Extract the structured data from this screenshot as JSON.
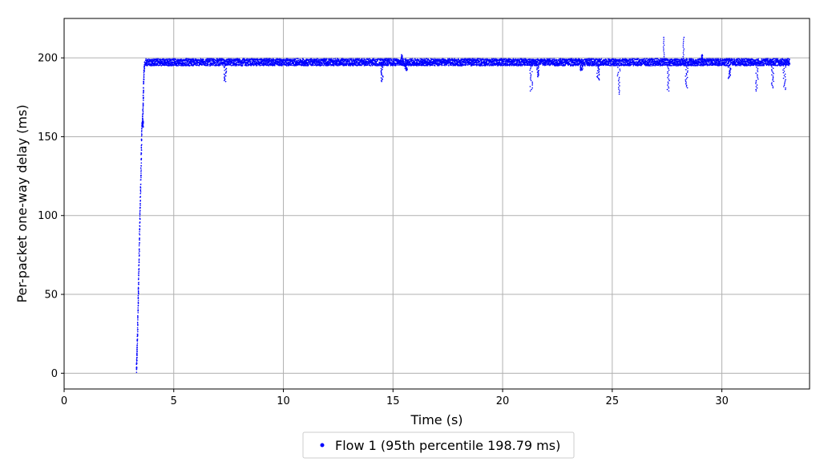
{
  "chart_data": {
    "type": "scatter",
    "xlabel": "Time (s)",
    "ylabel": "Per-packet one-way delay (ms)",
    "xlim": [
      0,
      34
    ],
    "ylim": [
      -10,
      225
    ],
    "xticks": [
      0,
      5,
      10,
      15,
      20,
      25,
      30
    ],
    "yticks": [
      0,
      50,
      100,
      150,
      200
    ],
    "grid": true,
    "legend_position": "bottom-center",
    "point_color": "#0000ff",
    "series": [
      {
        "name": "Flow 1 (95th percentile 198.79 ms)",
        "ramp": [
          [
            3.3,
            1
          ],
          [
            3.32,
            12
          ],
          [
            3.35,
            25
          ],
          [
            3.38,
            45
          ],
          [
            3.4,
            60
          ],
          [
            3.43,
            80
          ],
          [
            3.46,
            100
          ],
          [
            3.49,
            118
          ],
          [
            3.52,
            138
          ],
          [
            3.55,
            157
          ],
          [
            3.58,
            160
          ],
          [
            3.61,
            175
          ],
          [
            3.64,
            190
          ],
          [
            3.68,
            198
          ]
        ],
        "steady_state": {
          "x_start": 3.7,
          "x_end": 33.1,
          "y_min": 195,
          "y_max": 199.5
        },
        "dips": [
          [
            7.35,
            185
          ],
          [
            14.5,
            185
          ],
          [
            15.6,
            192
          ],
          [
            21.3,
            179
          ],
          [
            21.6,
            188
          ],
          [
            23.6,
            192
          ],
          [
            24.35,
            186
          ],
          [
            25.3,
            177
          ],
          [
            27.55,
            179
          ],
          [
            28.4,
            181
          ],
          [
            30.35,
            187
          ],
          [
            31.6,
            179
          ],
          [
            32.3,
            181
          ],
          [
            32.85,
            180
          ]
        ],
        "spikes": [
          [
            15.4,
            202
          ],
          [
            27.35,
            213
          ],
          [
            28.25,
            213
          ],
          [
            29.1,
            202
          ]
        ]
      }
    ]
  }
}
